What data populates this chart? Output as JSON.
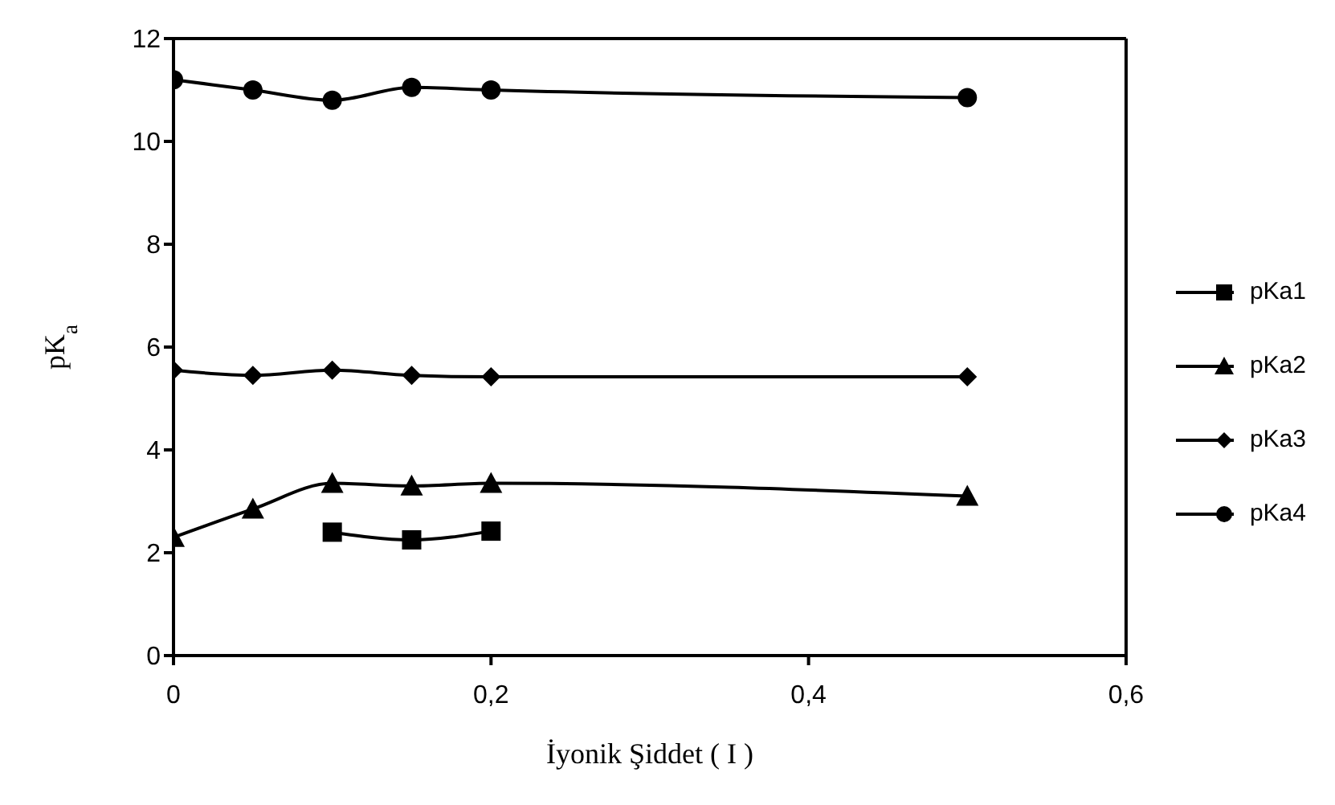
{
  "chart_data": {
    "type": "line",
    "xlabel": "İyonik Şiddet ( I )",
    "ylabel": "pK$_{a}$",
    "xlim": [
      0,
      0.6
    ],
    "xticks": [
      {
        "value": 0,
        "label": "0"
      },
      {
        "value": 0.2,
        "label": "0,2"
      },
      {
        "value": 0.4,
        "label": "0,4"
      },
      {
        "value": 0.6,
        "label": "0,6"
      }
    ],
    "ylim": [
      0,
      12
    ],
    "yticks": [
      0,
      2,
      4,
      6,
      8,
      10,
      12
    ],
    "grid": false,
    "legend": "right",
    "line_style": "solid",
    "series": [
      {
        "name": "pKa1",
        "color": "#000000",
        "marker": "square",
        "x": [
          0.1,
          0.15,
          0.2
        ],
        "values": [
          2.4,
          2.25,
          2.42
        ]
      },
      {
        "name": "pKa2",
        "color": "#000000",
        "marker": "triangle",
        "x": [
          0,
          0.05,
          0.1,
          0.15,
          0.2,
          0.5
        ],
        "values": [
          2.3,
          2.85,
          3.35,
          3.3,
          3.35,
          3.1
        ]
      },
      {
        "name": "pKa3",
        "color": "#000000",
        "marker": "diamond",
        "x": [
          0,
          0.05,
          0.1,
          0.15,
          0.2,
          0.5
        ],
        "values": [
          5.55,
          5.45,
          5.55,
          5.45,
          5.42,
          5.42
        ]
      },
      {
        "name": "pKa4",
        "color": "#000000",
        "marker": "circle",
        "x": [
          0,
          0.05,
          0.1,
          0.15,
          0.2,
          0.5
        ],
        "values": [
          11.2,
          11.0,
          10.8,
          11.05,
          11.0,
          10.85
        ]
      }
    ]
  }
}
